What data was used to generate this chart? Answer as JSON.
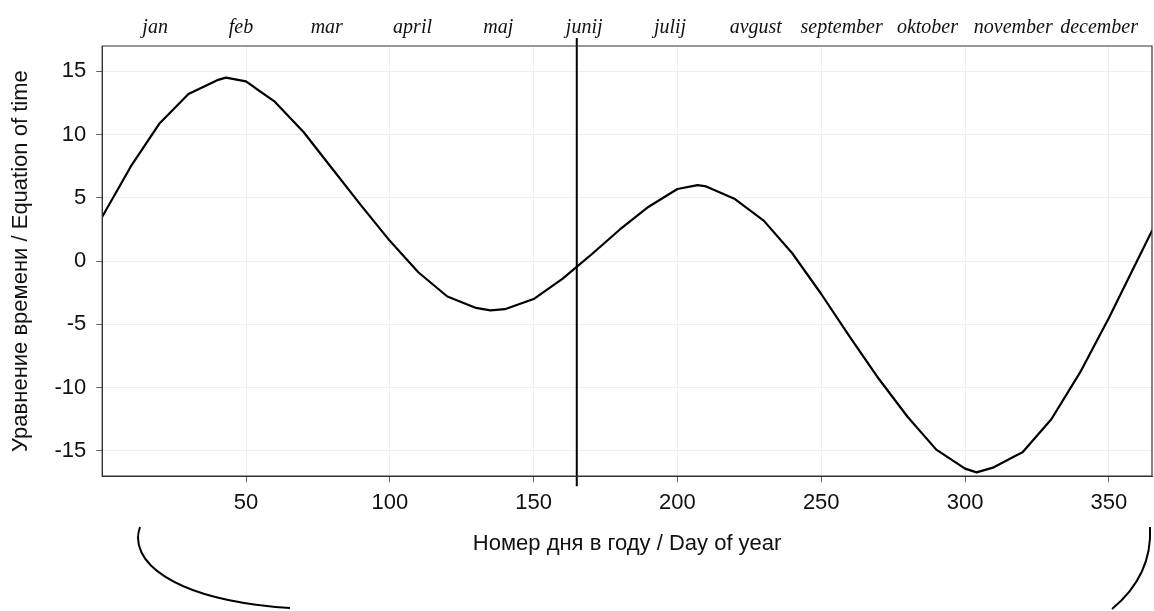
{
  "chart_data": {
    "type": "line",
    "xlabel": "Номер дня в году / Day of year",
    "ylabel": "Уравнение времени / Equation of time",
    "annotations": [
      "jan",
      "feb",
      "mar",
      "april",
      "maj",
      "junij",
      "julij",
      "avgust",
      "september",
      "oktober",
      "november",
      "december"
    ],
    "xlim": [
      0,
      365
    ],
    "xticks": [
      50,
      100,
      150,
      200,
      250,
      300,
      350
    ],
    "ylim": [
      -17,
      17
    ],
    "yticks": [
      -15,
      -10,
      -5,
      0,
      5,
      10,
      15
    ],
    "grid": true,
    "marker": "none",
    "line_style": "solid",
    "ref_lines": [
      {
        "axis": "x",
        "value": 165,
        "color": "#000000"
      }
    ],
    "series": [
      {
        "color": "#000000",
        "x": [
          0,
          10,
          20,
          30,
          40,
          43,
          50,
          60,
          70,
          80,
          90,
          100,
          110,
          120,
          130,
          135,
          140,
          150,
          160,
          170,
          180,
          190,
          200,
          207,
          210,
          220,
          230,
          240,
          250,
          260,
          270,
          280,
          290,
          300,
          304,
          310,
          320,
          330,
          340,
          350,
          360,
          365
        ],
        "values": [
          3.5,
          7.5,
          10.9,
          13.2,
          14.3,
          14.5,
          14.2,
          12.6,
          10.2,
          7.3,
          4.4,
          1.6,
          -0.9,
          -2.8,
          -3.7,
          -3.9,
          -3.8,
          -3.0,
          -1.4,
          0.5,
          2.5,
          4.3,
          5.7,
          6.0,
          5.9,
          4.9,
          3.2,
          0.6,
          -2.6,
          -6.0,
          -9.3,
          -12.3,
          -14.9,
          -16.4,
          -16.7,
          -16.3,
          -15.1,
          -12.5,
          -8.8,
          -4.5,
          0.1,
          2.4
        ]
      }
    ]
  }
}
